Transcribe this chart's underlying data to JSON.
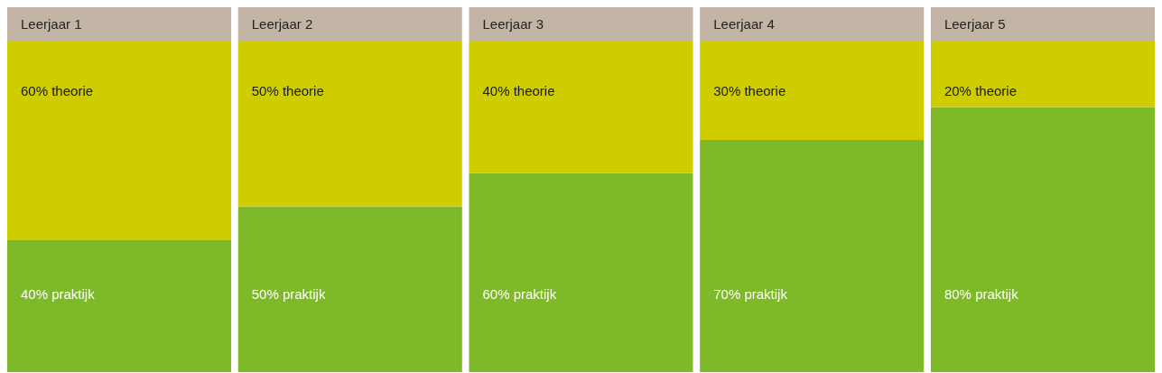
{
  "chart_data": {
    "type": "bar",
    "stacked": true,
    "categories": [
      "Leerjaar 1",
      "Leerjaar 2",
      "Leerjaar 3",
      "Leerjaar 4",
      "Leerjaar 5"
    ],
    "series": [
      {
        "color": "#7db928",
        "values": [
          40,
          50,
          60,
          70,
          80
        ],
        "value_labels": [
          "40% praktijk",
          "50% praktijk",
          "60% praktijk",
          "70% praktijk",
          "80% praktijk"
        ]
      },
      {
        "color": "#cfcd00",
        "values": [
          60,
          50,
          40,
          30,
          20
        ],
        "value_labels": [
          "60% theorie",
          "50% theorie",
          "40% theorie",
          "30% theorie",
          "20% theorie"
        ]
      }
    ],
    "ylim": [
      0,
      100
    ],
    "tick_labels": "x",
    "legend": false
  }
}
